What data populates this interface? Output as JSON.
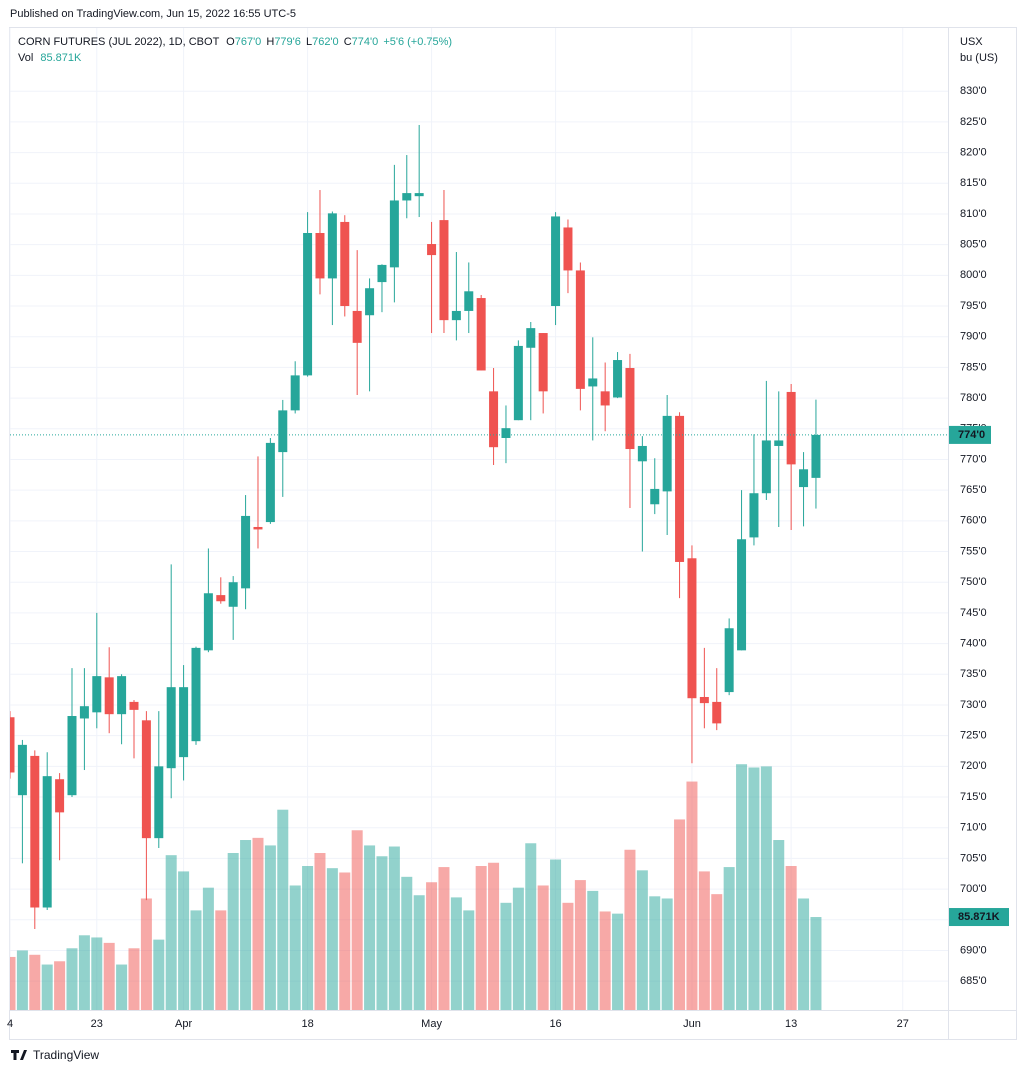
{
  "header": {
    "published": "Published on TradingView.com, Jun 15, 2022 16:55 UTC-5",
    "brand": "TradingView"
  },
  "chart_data": {
    "type": "candlestick",
    "title": "CORN FUTURES (JUL 2022), 1D, CBOT",
    "ohlc_letters": {
      "open": "O",
      "high": "H",
      "low": "L",
      "close": "C"
    },
    "last_labels": {
      "open": "767'0",
      "high": "779'6",
      "low": "762'0",
      "close": "774'0",
      "change": "+5'6 (+0.75%)"
    },
    "volume_title": "Vol",
    "volume_last_label": "85.871K",
    "unit_labels": [
      "USX",
      "bu (US)"
    ],
    "up_color": "#26a69a",
    "down_color": "#ef5350",
    "open": [
      728,
      715.3,
      721.7,
      697,
      717.9,
      715.3,
      727.8,
      728.8,
      734.5,
      728.5,
      730.5,
      727.5,
      708.3,
      719.7,
      721.5,
      724.1,
      738.9,
      747.9,
      746,
      749,
      759,
      759.8,
      771.2,
      778,
      783.7,
      806.9,
      799.5,
      808.7,
      794.2,
      793.5,
      798.9,
      801.3,
      812.2,
      812.9,
      805.1,
      809,
      792.7,
      794.2,
      796.3,
      781.1,
      773.5,
      776.4,
      788.2,
      790.6,
      795,
      807.8,
      800.8,
      781.9,
      781.1,
      780.1,
      784.9,
      769.7,
      762.7,
      764.8,
      777.1,
      753.9,
      731.3,
      730.5,
      732.1,
      738.9,
      757.3,
      764.5,
      772.2,
      781,
      765.5,
      767
    ],
    "high": [
      729,
      724.3,
      722.6,
      722.3,
      718.9,
      736,
      736,
      745,
      739.4,
      735,
      730.8,
      729,
      729,
      752.9,
      736.5,
      739.5,
      755.5,
      750.8,
      751,
      764.2,
      770.5,
      773.5,
      779.7,
      786,
      810.3,
      813.9,
      810.4,
      809.8,
      804.1,
      799.5,
      801.8,
      818,
      819.6,
      824.5,
      808.7,
      813.9,
      803.8,
      802.1,
      796.8,
      784.9,
      778.8,
      789.4,
      792.4,
      790.6,
      810.3,
      809.1,
      802.1,
      789.9,
      785.8,
      787.5,
      787.2,
      773.8,
      770.2,
      780.5,
      777.7,
      756,
      739.3,
      736,
      744.1,
      765,
      774.1,
      782.8,
      781.1,
      782.3,
      771.2,
      779.75
    ],
    "low": [
      718,
      704.2,
      693.5,
      696.6,
      704.7,
      715,
      719.4,
      726.2,
      725.4,
      723.6,
      721.3,
      698.2,
      706.7,
      714.8,
      717.7,
      723.5,
      738.6,
      746.5,
      740.6,
      745.6,
      755.5,
      759.5,
      763.9,
      777.5,
      783.5,
      796.9,
      791.9,
      793.3,
      780.5,
      781.1,
      794,
      795.6,
      809.3,
      809.5,
      790.6,
      790.6,
      789.4,
      790.6,
      784.5,
      769.1,
      769.4,
      776.4,
      776.4,
      777.5,
      791.9,
      797.1,
      778,
      773.1,
      774.6,
      780,
      762.1,
      755,
      761.1,
      757.7,
      747.4,
      720.5,
      726.2,
      725.9,
      731.6,
      738.9,
      756,
      763.4,
      759,
      758.5,
      759.1,
      762
    ],
    "close": [
      719,
      723.5,
      697,
      718.4,
      712.5,
      728.2,
      729.8,
      734.7,
      728.5,
      734.7,
      729.2,
      708.3,
      720,
      732.9,
      732.9,
      739.3,
      748.2,
      746.9,
      750,
      760.8,
      758.6,
      772.7,
      778,
      783.7,
      806.9,
      799.5,
      810.1,
      795,
      789,
      797.9,
      801.7,
      812.2,
      813.4,
      813.4,
      803.3,
      792.7,
      794.2,
      797.4,
      784.5,
      772,
      775.1,
      788.5,
      791.4,
      781.1,
      809.6,
      800.8,
      781.5,
      783.2,
      778.8,
      786.2,
      771.7,
      772.2,
      765.2,
      777.1,
      753.3,
      731.1,
      730.3,
      727,
      742.5,
      757,
      764.5,
      773.1,
      773.1,
      769.2,
      768.4,
      774
    ],
    "volume": [
      49000,
      55000,
      51000,
      42000,
      45000,
      57000,
      69000,
      67000,
      62000,
      42000,
      57000,
      103000,
      65000,
      143000,
      128000,
      92000,
      113000,
      92000,
      145000,
      157000,
      159000,
      152000,
      185000,
      115000,
      133000,
      145000,
      131000,
      127000,
      166000,
      152000,
      142000,
      151000,
      123000,
      106000,
      118000,
      132000,
      104000,
      92000,
      133000,
      136000,
      99000,
      113000,
      154000,
      115000,
      139000,
      99000,
      120000,
      110000,
      91000,
      89000,
      148000,
      129000,
      105000,
      103000,
      176000,
      211000,
      128000,
      107000,
      132000,
      227000,
      224000,
      225000,
      157000,
      133000,
      103000,
      85871
    ],
    "xlim": [
      0,
      75.65
    ],
    "xticks": [
      {
        "value": 0,
        "label": "4"
      },
      {
        "value": 7,
        "label": "23"
      },
      {
        "value": 14,
        "label": "Apr"
      },
      {
        "value": 24,
        "label": "18"
      },
      {
        "value": 34,
        "label": "May"
      },
      {
        "value": 44,
        "label": "16"
      },
      {
        "value": 55,
        "label": "Jun"
      },
      {
        "value": 63,
        "label": "13"
      },
      {
        "value": 72,
        "label": "27"
      }
    ],
    "ylim": [
      680.3,
      840.3
    ],
    "yticks": [
      {
        "value": 685,
        "label": "685'0"
      },
      {
        "value": 690,
        "label": "690'0"
      },
      {
        "value": 695,
        "label": "695'0"
      },
      {
        "value": 700,
        "label": "700'0"
      },
      {
        "value": 705,
        "label": "705'0"
      },
      {
        "value": 710,
        "label": "710'0"
      },
      {
        "value": 715,
        "label": "715'0"
      },
      {
        "value": 720,
        "label": "720'0"
      },
      {
        "value": 725,
        "label": "725'0"
      },
      {
        "value": 730,
        "label": "730'0"
      },
      {
        "value": 735,
        "label": "735'0"
      },
      {
        "value": 740,
        "label": "740'0"
      },
      {
        "value": 745,
        "label": "745'0"
      },
      {
        "value": 750,
        "label": "750'0"
      },
      {
        "value": 755,
        "label": "755'0"
      },
      {
        "value": 760,
        "label": "760'0"
      },
      {
        "value": 765,
        "label": "765'0"
      },
      {
        "value": 770,
        "label": "770'0"
      },
      {
        "value": 775,
        "label": "775'0"
      },
      {
        "value": 780,
        "label": "780'0"
      },
      {
        "value": 785,
        "label": "785'0"
      },
      {
        "value": 790,
        "label": "790'0"
      },
      {
        "value": 795,
        "label": "795'0"
      },
      {
        "value": 800,
        "label": "800'0"
      },
      {
        "value": 805,
        "label": "805'0"
      },
      {
        "value": 810,
        "label": "810'0"
      },
      {
        "value": 815,
        "label": "815'0"
      },
      {
        "value": 820,
        "label": "820'0"
      },
      {
        "value": 825,
        "label": "825'0"
      },
      {
        "value": 830,
        "label": "830'0"
      }
    ],
    "volume_ylim": [
      0,
      907000
    ],
    "grid": true
  }
}
